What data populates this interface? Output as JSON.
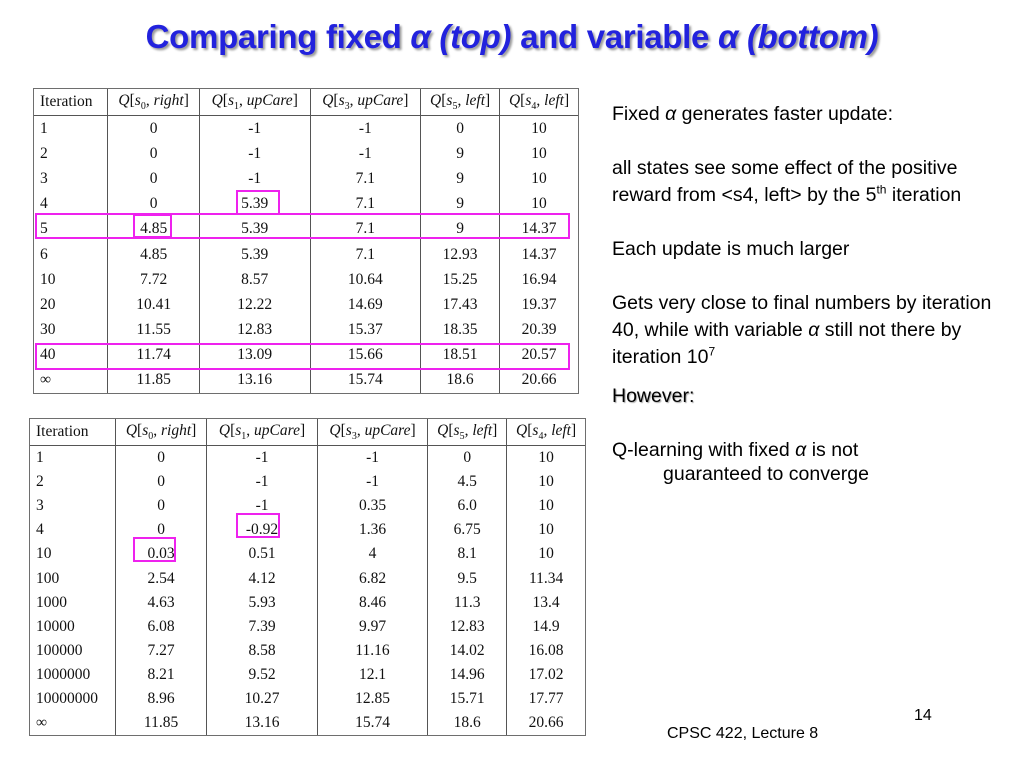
{
  "title": {
    "p1": "Comparing fixed ",
    "alpha_top": "α (top)",
    "p2": " and variable ",
    "alpha_bottom": "α (bottom)"
  },
  "header": [
    {
      "plain": "Iteration"
    },
    {
      "q": "Q",
      "open": "[",
      "s": "s",
      "sub": "0",
      "sep": ", ",
      "act": "right",
      "close": "]"
    },
    {
      "q": "Q",
      "open": "[",
      "s": "s",
      "sub": "1",
      "sep": ", ",
      "act": "upCare",
      "close": "]"
    },
    {
      "q": "Q",
      "open": "[",
      "s": "s",
      "sub": "3",
      "sep": ", ",
      "act": "upCare",
      "close": "]"
    },
    {
      "q": "Q",
      "open": "[",
      "s": "s",
      "sub": "5",
      "sep": ", ",
      "act": "left",
      "close": "]"
    },
    {
      "q": "Q",
      "open": "[",
      "s": "s",
      "sub": "4",
      "sep": ", ",
      "act": "left",
      "close": "]"
    }
  ],
  "top_table": [
    [
      "1",
      "0",
      "-1",
      "-1",
      "0",
      "10"
    ],
    [
      "2",
      "0",
      "-1",
      "-1",
      "9",
      "10"
    ],
    [
      "3",
      "0",
      "-1",
      "7.1",
      "9",
      "10"
    ],
    [
      "4",
      "0",
      "5.39",
      "7.1",
      "9",
      "10"
    ],
    [
      "5",
      "4.85",
      "5.39",
      "7.1",
      "9",
      "14.37"
    ],
    [
      "6",
      "4.85",
      "5.39",
      "7.1",
      "12.93",
      "14.37"
    ],
    [
      "10",
      "7.72",
      "8.57",
      "10.64",
      "15.25",
      "16.94"
    ],
    [
      "20",
      "10.41",
      "12.22",
      "14.69",
      "17.43",
      "19.37"
    ],
    [
      "30",
      "11.55",
      "12.83",
      "15.37",
      "18.35",
      "20.39"
    ],
    [
      "40",
      "11.74",
      "13.09",
      "15.66",
      "18.51",
      "20.57"
    ],
    [
      "∞",
      "11.85",
      "13.16",
      "15.74",
      "18.6",
      "20.66"
    ]
  ],
  "bottom_table": [
    [
      "1",
      "0",
      "-1",
      "-1",
      "0",
      "10"
    ],
    [
      "2",
      "0",
      "-1",
      "-1",
      "4.5",
      "10"
    ],
    [
      "3",
      "0",
      "-1",
      "0.35",
      "6.0",
      "10"
    ],
    [
      "4",
      "0",
      "-0.92",
      "1.36",
      "6.75",
      "10"
    ],
    [
      "10",
      "0.03",
      "0.51",
      "4",
      "8.1",
      "10"
    ],
    [
      "100",
      "2.54",
      "4.12",
      "6.82",
      "9.5",
      "11.34"
    ],
    [
      "1000",
      "4.63",
      "5.93",
      "8.46",
      "11.3",
      "13.4"
    ],
    [
      "10000",
      "6.08",
      "7.39",
      "9.97",
      "12.83",
      "14.9"
    ],
    [
      "100000",
      "7.27",
      "8.58",
      "11.16",
      "14.02",
      "16.08"
    ],
    [
      "1000000",
      "8.21",
      "9.52",
      "12.1",
      "14.96",
      "17.02"
    ],
    [
      "10000000",
      "8.96",
      "10.27",
      "12.85",
      "15.71",
      "17.77"
    ],
    [
      "∞",
      "11.85",
      "13.16",
      "15.74",
      "18.6",
      "20.66"
    ]
  ],
  "notes": {
    "n1_a": "Fixed ",
    "n1_alpha": "α",
    "n1_b": " generates faster update:",
    "n2_a": "all states see some effect of the positive reward from <s4, left> by the 5",
    "n2_sup": "th",
    "n2_b": " iteration",
    "n3": "Each update is much larger",
    "n4_a": "Gets very close to final numbers by iteration 40, while with variable ",
    "n4_alpha": "α",
    "n4_b": " still  not there by iteration 10",
    "n4_sup": "7",
    "n5": "However:",
    "n6_a": "Q-learning with fixed ",
    "n6_alpha": "α",
    "n6_b": " is not",
    "n6_c": "guaranteed to converge"
  },
  "page_number": "14",
  "footer": "CPSC 422, Lecture 8",
  "colors": {
    "title": "#2222dd",
    "highlight": "#ee22ee"
  }
}
